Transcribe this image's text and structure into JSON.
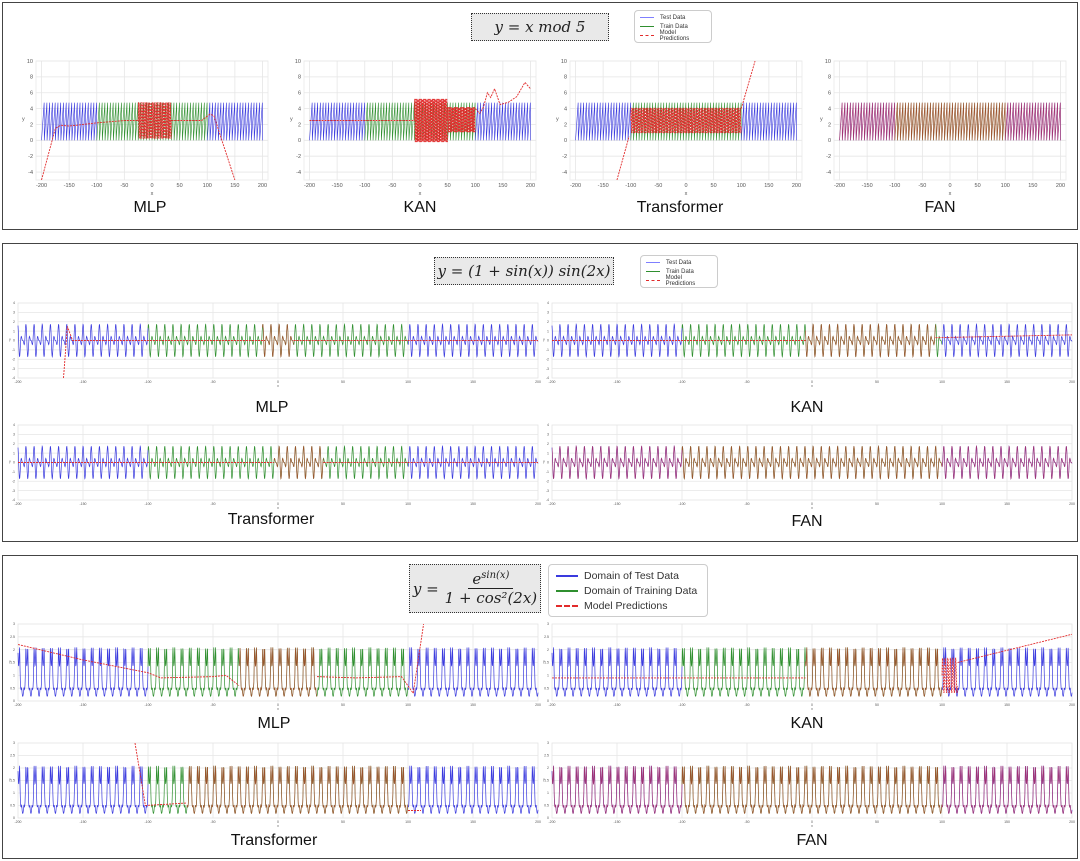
{
  "colors": {
    "test": "#3a3ade",
    "train": "#2f8f2f",
    "pred": "#e22b2b"
  },
  "panels": [
    {
      "formula": "y = x mod 5",
      "legend": [
        "Test Data",
        "Train Data",
        "Model Predictions"
      ]
    },
    {
      "formula": "y = (1 + sin(x)) sin(2x)",
      "legend": [
        "Test Data",
        "Train Data",
        "Model Predictions"
      ]
    },
    {
      "formula_lhs": "y =",
      "formula_num": "e",
      "formula_sup": "sin(x)",
      "formula_den": "1 + cos²(2x)",
      "legend": [
        "Domain of Test Data",
        "Domain of Training Data",
        "Model Predictions"
      ]
    }
  ],
  "chart_data": [
    {
      "type": "line",
      "title": "MLP",
      "function": "mod5",
      "xlabel": "x",
      "ylabel": "y",
      "xlim": [
        -210,
        210
      ],
      "ylim": [
        -5,
        10
      ],
      "xticks": [
        -200,
        -150,
        -100,
        -50,
        0,
        50,
        100,
        150,
        200
      ],
      "yticks": [
        -4,
        -2,
        0,
        2,
        4,
        6,
        8,
        10
      ],
      "train_domain": [
        -100,
        100
      ],
      "predictions": [
        {
          "kind": "line",
          "points": [
            [
              -200,
              -5
            ],
            [
              -175,
              1.5
            ],
            [
              -165,
              1.9
            ],
            [
              -150,
              1.8
            ],
            [
              -100,
              2.2
            ],
            [
              -50,
              2.5
            ],
            [
              -25,
              2.5
            ]
          ]
        },
        {
          "kind": "osc",
          "from": -25,
          "to": 35,
          "center": 2.5,
          "amp": 2.3,
          "period": 2.5
        },
        {
          "kind": "line",
          "points": [
            [
              35,
              2.5
            ],
            [
              90,
              2.5
            ],
            [
              105,
              3.3
            ],
            [
              112,
              3.1
            ],
            [
              150,
              -5
            ]
          ]
        }
      ]
    },
    {
      "type": "line",
      "title": "KAN",
      "function": "mod5",
      "xlabel": "x",
      "ylabel": "y",
      "xlim": [
        -210,
        210
      ],
      "ylim": [
        -5,
        10
      ],
      "xticks": [
        -200,
        -150,
        -100,
        -50,
        0,
        50,
        100,
        150,
        200
      ],
      "yticks": [
        -4,
        -2,
        0,
        2,
        4,
        6,
        8,
        10
      ],
      "train_domain": [
        -100,
        100
      ],
      "predictions": [
        {
          "kind": "line",
          "points": [
            [
              -200,
              2.5
            ],
            [
              -10,
              2.5
            ]
          ]
        },
        {
          "kind": "osc",
          "from": -10,
          "to": 50,
          "center": 2.5,
          "amp": 2.8,
          "period": 2
        },
        {
          "kind": "osc",
          "from": 50,
          "to": 100,
          "center": 2.6,
          "amp": 1.6,
          "period": 2
        },
        {
          "kind": "line",
          "points": [
            [
              100,
              4
            ],
            [
              108,
              3.4
            ],
            [
              115,
              4.2
            ],
            [
              122,
              6
            ],
            [
              128,
              5.4
            ],
            [
              135,
              6.5
            ],
            [
              145,
              4.5
            ],
            [
              160,
              4.8
            ],
            [
              175,
              5.5
            ],
            [
              190,
              7.3
            ],
            [
              200,
              6.5
            ]
          ]
        }
      ]
    },
    {
      "type": "line",
      "title": "Transformer",
      "function": "mod5",
      "xlabel": "x",
      "ylabel": "y",
      "xlim": [
        -210,
        210
      ],
      "ylim": [
        -5,
        10
      ],
      "xticks": [
        -200,
        -150,
        -100,
        -50,
        0,
        50,
        100,
        150,
        200
      ],
      "yticks": [
        -4,
        -2,
        0,
        2,
        4,
        6,
        8,
        10
      ],
      "train_domain": [
        -100,
        100
      ],
      "predictions": [
        {
          "kind": "line",
          "points": [
            [
              -125,
              -5
            ],
            [
              -103,
              0.5
            ]
          ]
        },
        {
          "kind": "osc",
          "from": -100,
          "to": 100,
          "center": 2.5,
          "amp": 1.6,
          "period": 2.5
        },
        {
          "kind": "line",
          "points": [
            [
              100,
              4
            ],
            [
              125,
              10
            ]
          ]
        }
      ]
    },
    {
      "type": "line",
      "title": "FAN",
      "function": "mod5",
      "xlabel": "x",
      "ylabel": "y",
      "xlim": [
        -210,
        210
      ],
      "ylim": [
        -5,
        10
      ],
      "xticks": [
        -200,
        -150,
        -100,
        -50,
        0,
        50,
        100,
        150,
        200
      ],
      "yticks": [
        -4,
        -2,
        0,
        2,
        4,
        6,
        8,
        10
      ],
      "train_domain": [
        -100,
        100
      ],
      "predictions": [
        {
          "kind": "match",
          "from": -200,
          "to": 200
        }
      ]
    },
    {
      "type": "line",
      "title": "MLP",
      "function": "sinmix",
      "xlabel": "x",
      "ylabel": "y",
      "xlim": [
        -200,
        200
      ],
      "ylim": [
        -4,
        4
      ],
      "xticks": [
        -200,
        -150,
        -100,
        -50,
        0,
        50,
        100,
        150,
        200
      ],
      "yticks": [
        -4,
        -3,
        -2,
        -1,
        0,
        1,
        2,
        3,
        4
      ],
      "train_domain": [
        -100,
        100
      ],
      "predictions": [
        {
          "kind": "line",
          "points": [
            [
              -165,
              -4
            ],
            [
              -162,
              1.5
            ],
            [
              -158,
              0
            ],
            [
              -10,
              0
            ]
          ]
        },
        {
          "kind": "match",
          "from": -12,
          "to": 12
        },
        {
          "kind": "line",
          "points": [
            [
              12,
              0
            ],
            [
              200,
              0
            ]
          ]
        }
      ]
    },
    {
      "type": "line",
      "title": "KAN",
      "function": "sinmix",
      "xlabel": "x",
      "ylabel": "y",
      "xlim": [
        -200,
        200
      ],
      "ylim": [
        -4,
        4
      ],
      "xticks": [
        -200,
        -150,
        -100,
        -50,
        0,
        50,
        100,
        150,
        200
      ],
      "yticks": [
        -4,
        -3,
        -2,
        -1,
        0,
        1,
        2,
        3,
        4
      ],
      "train_domain": [
        -100,
        100
      ],
      "predictions": [
        {
          "kind": "line",
          "points": [
            [
              -200,
              0
            ],
            [
              -5,
              0
            ]
          ]
        },
        {
          "kind": "match",
          "from": -5,
          "to": 95
        },
        {
          "kind": "line",
          "points": [
            [
              95,
              0.3
            ],
            [
              200,
              0.6
            ]
          ]
        }
      ]
    },
    {
      "type": "line",
      "title": "Transformer",
      "function": "sinmix",
      "xlabel": "x",
      "ylabel": "y",
      "xlim": [
        -200,
        200
      ],
      "ylim": [
        -4,
        4
      ],
      "xticks": [
        -200,
        -150,
        -100,
        -50,
        0,
        50,
        100,
        150,
        200
      ],
      "yticks": [
        -4,
        -3,
        -2,
        -1,
        0,
        1,
        2,
        3,
        4
      ],
      "train_domain": [
        -100,
        100
      ],
      "predictions": [
        {
          "kind": "line",
          "points": [
            [
              -200,
              0
            ],
            [
              -3,
              0
            ]
          ]
        },
        {
          "kind": "match",
          "from": -3,
          "to": 35
        },
        {
          "kind": "line",
          "points": [
            [
              35,
              0
            ],
            [
              200,
              0
            ]
          ]
        }
      ]
    },
    {
      "type": "line",
      "title": "FAN",
      "function": "sinmix",
      "xlabel": "x",
      "ylabel": "y",
      "xlim": [
        -200,
        200
      ],
      "ylim": [
        -4,
        4
      ],
      "xticks": [
        -200,
        -150,
        -100,
        -50,
        0,
        50,
        100,
        150,
        200
      ],
      "yticks": [
        -4,
        -3,
        -2,
        -1,
        0,
        1,
        2,
        3,
        4
      ],
      "train_domain": [
        -100,
        100
      ],
      "predictions": [
        {
          "kind": "match",
          "from": -200,
          "to": 200
        }
      ]
    },
    {
      "type": "line",
      "title": "MLP",
      "function": "expfrac",
      "xlabel": "x",
      "ylabel": "y",
      "xlim": [
        -200,
        200
      ],
      "ylim": [
        0,
        3
      ],
      "xticks": [
        -200,
        -150,
        -100,
        -50,
        0,
        50,
        100,
        150,
        200
      ],
      "yticks": [
        0,
        0.5,
        1,
        1.5,
        2,
        2.5,
        3
      ],
      "train_domain": [
        -100,
        100
      ],
      "predictions": [
        {
          "kind": "line",
          "points": [
            [
              -200,
              2.2
            ],
            [
              -150,
              1.6
            ],
            [
              -100,
              1.1
            ],
            [
              -90,
              0.9
            ],
            [
              -50,
              0.95
            ],
            [
              -40,
              1.0
            ],
            [
              -30,
              0.6
            ]
          ]
        },
        {
          "kind": "match",
          "from": -30,
          "to": 30
        },
        {
          "kind": "line",
          "points": [
            [
              30,
              0.95
            ],
            [
              60,
              0.9
            ],
            [
              95,
              0.95
            ],
            [
              104,
              0.3
            ],
            [
              112,
              3
            ]
          ]
        }
      ]
    },
    {
      "type": "line",
      "title": "KAN",
      "function": "expfrac",
      "xlabel": "x",
      "ylabel": "y",
      "xlim": [
        -200,
        200
      ],
      "ylim": [
        0,
        3
      ],
      "xticks": [
        -200,
        -150,
        -100,
        -50,
        0,
        50,
        100,
        150,
        200
      ],
      "yticks": [
        0,
        0.5,
        1,
        1.5,
        2,
        2.5,
        3
      ],
      "train_domain": [
        -100,
        100
      ],
      "predictions": [
        {
          "kind": "line",
          "points": [
            [
              -200,
              0.9
            ],
            [
              -5,
              0.9
            ]
          ]
        },
        {
          "kind": "match",
          "from": -5,
          "to": 100
        },
        {
          "kind": "osc",
          "from": 100,
          "to": 112,
          "center": 1.0,
          "amp": 0.7,
          "period": 2
        },
        {
          "kind": "line",
          "points": [
            [
              112,
              1.5
            ],
            [
              200,
              2.6
            ]
          ]
        }
      ]
    },
    {
      "type": "line",
      "title": "Transformer",
      "function": "expfrac",
      "xlabel": "x",
      "ylabel": "y",
      "xlim": [
        -200,
        200
      ],
      "ylim": [
        0,
        3
      ],
      "xticks": [
        -200,
        -150,
        -100,
        -50,
        0,
        50,
        100,
        150,
        200
      ],
      "yticks": [
        0,
        0.5,
        1,
        1.5,
        2,
        2.5,
        3
      ],
      "train_domain": [
        -100,
        100
      ],
      "predictions": [
        {
          "kind": "line",
          "points": [
            [
              -110,
              3
            ],
            [
              -102,
              0.5
            ],
            [
              -70,
              0.6
            ]
          ]
        },
        {
          "kind": "match",
          "from": -70,
          "to": 100
        },
        {
          "kind": "line",
          "points": [
            [
              100,
              0.3
            ],
            [
              110,
              0.3
            ]
          ]
        }
      ]
    },
    {
      "type": "line",
      "title": "FAN",
      "function": "expfrac",
      "xlabel": "x",
      "ylabel": "y",
      "xlim": [
        -200,
        200
      ],
      "ylim": [
        0,
        3
      ],
      "xticks": [
        -200,
        -150,
        -100,
        -50,
        0,
        50,
        100,
        150,
        200
      ],
      "yticks": [
        0,
        0.5,
        1,
        1.5,
        2,
        2.5,
        3
      ],
      "train_domain": [
        -100,
        100
      ],
      "predictions": [
        {
          "kind": "match",
          "from": -200,
          "to": 200
        }
      ]
    }
  ]
}
